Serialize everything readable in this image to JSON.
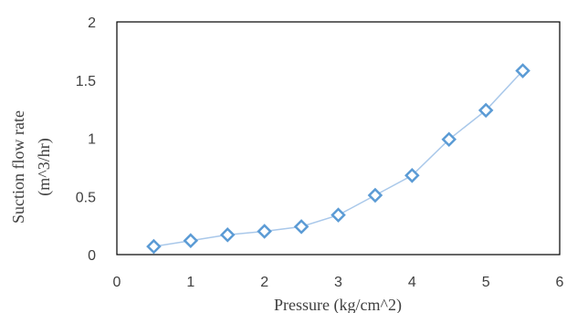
{
  "chart_data": {
    "type": "scatter",
    "xlabel": "Pressure (kg/cm^2)",
    "ylabel_lines": [
      "Suction flow rate",
      "(m^3/hr)"
    ],
    "xlim": [
      0,
      6
    ],
    "ylim": [
      0,
      2
    ],
    "x_ticks": [
      "0",
      "1",
      "2",
      "3",
      "4",
      "5",
      "6"
    ],
    "y_ticks": [
      "0",
      "0.5",
      "1",
      "1.5",
      "2"
    ],
    "grid": false,
    "legend": "none",
    "marker": "diamond",
    "connected": true,
    "colors": {
      "marker": "#5b9bd5",
      "line": "#a9c8ea",
      "frame": "#000000"
    },
    "series": [
      {
        "x": [
          0.5,
          1,
          1.5,
          2,
          2.5,
          3,
          3.5,
          4,
          4.5,
          5,
          5.5
        ],
        "y": [
          0.07,
          0.12,
          0.17,
          0.2,
          0.24,
          0.34,
          0.51,
          0.68,
          0.99,
          1.24,
          1.58
        ]
      }
    ]
  }
}
